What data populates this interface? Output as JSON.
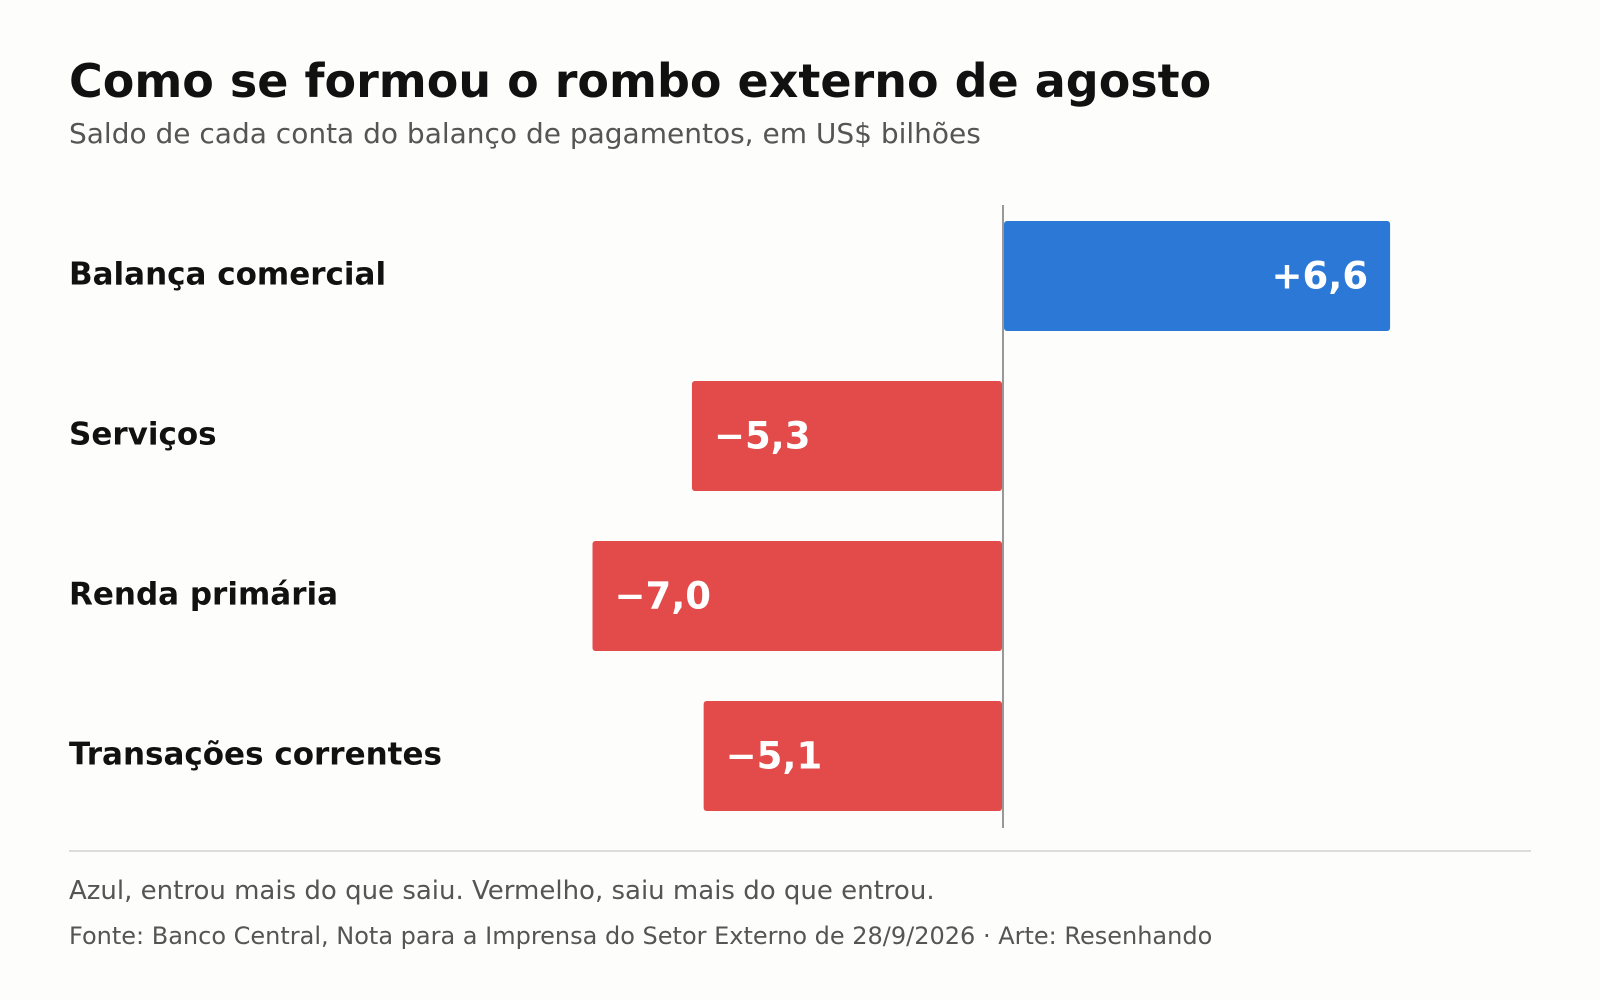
{
  "header": {
    "title": "Como se formou o rombo externo de agosto",
    "subtitle": "Saldo de cada conta do balanço de pagamentos, em US$ bilhões"
  },
  "chart_data": {
    "type": "bar",
    "orientation": "horizontal",
    "categories": [
      "Balança comercial",
      "Serviços",
      "Renda primária",
      "Transações correntes"
    ],
    "values": [
      6.6,
      -5.3,
      -7.0,
      -5.1
    ],
    "value_labels": [
      "+6,6",
      "−5,3",
      "−7,0",
      "−5,1"
    ],
    "colors": {
      "positive": "#2b78d6",
      "negative": "#e34a4a",
      "baseline": "#777777"
    },
    "xlim": [
      -7.0,
      6.6
    ],
    "grid": false,
    "legend": "none"
  },
  "footer": {
    "note": "Azul, entrou mais do que saiu. Vermelho, saiu mais do que entrou.",
    "source": "Fonte: Banco Central, Nota para a Imprensa do Setor Externo de 28/9/2026  ·  Arte: Resenhando"
  }
}
